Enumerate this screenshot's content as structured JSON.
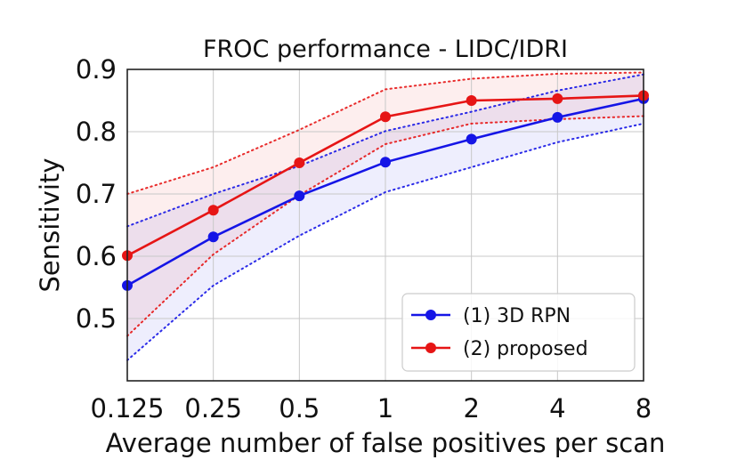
{
  "chart_data": {
    "type": "line",
    "title": "FROC performance - LIDC/IDRI",
    "xlabel": "Average number of false positives per scan",
    "ylabel": "Sensitivity",
    "categories": [
      "0.125",
      "0.25",
      "0.5",
      "1",
      "2",
      "4",
      "8"
    ],
    "x_scale": "log2",
    "ylim": [
      0.4,
      0.9
    ],
    "yticks": [
      "0.5",
      "0.6",
      "0.7",
      "0.8",
      "0.9"
    ],
    "grid": true,
    "legend_position": "bottom-right",
    "series": [
      {
        "name": "(1) 3D RPN",
        "color": "#1515e6",
        "values": [
          0.553,
          0.631,
          0.697,
          0.751,
          0.788,
          0.823,
          0.853
        ],
        "ci_upper": [
          0.648,
          0.7,
          0.745,
          0.801,
          0.832,
          0.866,
          0.892
        ],
        "ci_lower": [
          0.433,
          0.553,
          0.633,
          0.703,
          0.743,
          0.783,
          0.813
        ]
      },
      {
        "name": "(2) proposed",
        "color": "#e61515",
        "values": [
          0.601,
          0.674,
          0.75,
          0.824,
          0.85,
          0.853,
          0.858
        ],
        "ci_upper": [
          0.7,
          0.743,
          0.803,
          0.868,
          0.885,
          0.893,
          0.895
        ],
        "ci_lower": [
          0.472,
          0.603,
          0.698,
          0.78,
          0.813,
          0.82,
          0.825
        ]
      }
    ]
  }
}
